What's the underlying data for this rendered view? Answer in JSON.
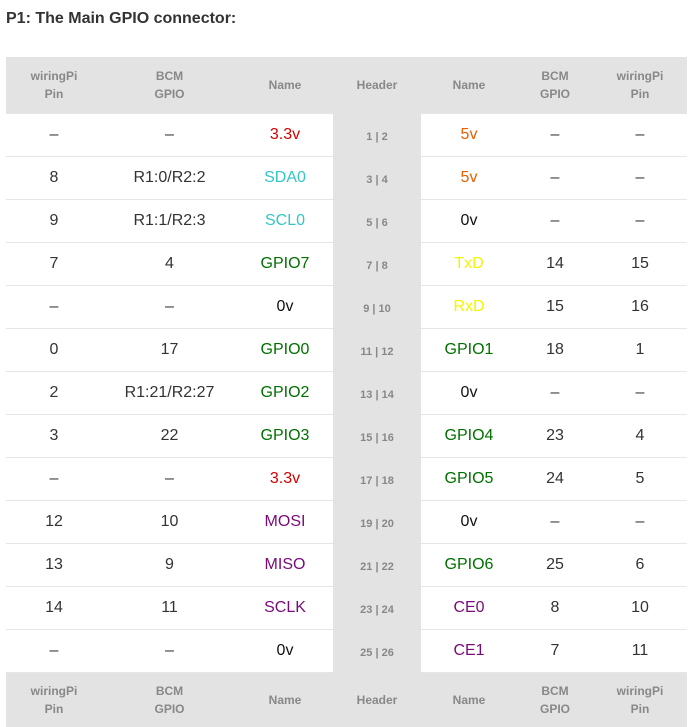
{
  "title": "P1: The Main GPIO connector:",
  "columns": [
    {
      "line1": "wiringPi",
      "line2": "Pin"
    },
    {
      "line1": "BCM",
      "line2": "GPIO"
    },
    {
      "line1": "Name",
      "line2": ""
    },
    {
      "line1": "Header",
      "line2": ""
    },
    {
      "line1": "Name",
      "line2": ""
    },
    {
      "line1": "BCM",
      "line2": "GPIO"
    },
    {
      "line1": "wiringPi",
      "line2": "Pin"
    }
  ],
  "colors": {
    "red": "#d40000",
    "orange": "#e86000",
    "cyan": "#33c6c6",
    "green": "#007000",
    "yellow": "#f5f500",
    "purple": "#7a0a7a",
    "black": "#111111"
  },
  "rows": [
    {
      "wpi_l": "–",
      "bcm_l": "–",
      "name_l": "3.3v",
      "name_l_color": "red",
      "header": "1 | 2",
      "name_r": "5v",
      "name_r_color": "orange",
      "bcm_r": "–",
      "wpi_r": "–"
    },
    {
      "wpi_l": "8",
      "bcm_l": "R1:0/R2:2",
      "name_l": "SDA0",
      "name_l_color": "cyan",
      "header": "3 | 4",
      "name_r": "5v",
      "name_r_color": "orange",
      "bcm_r": "–",
      "wpi_r": "–"
    },
    {
      "wpi_l": "9",
      "bcm_l": "R1:1/R2:3",
      "name_l": "SCL0",
      "name_l_color": "cyan",
      "header": "5 | 6",
      "name_r": "0v",
      "name_r_color": "black",
      "bcm_r": "–",
      "wpi_r": "–"
    },
    {
      "wpi_l": "7",
      "bcm_l": "4",
      "name_l": "GPIO7",
      "name_l_color": "green",
      "header": "7 | 8",
      "name_r": "TxD",
      "name_r_color": "yellow",
      "bcm_r": "14",
      "wpi_r": "15"
    },
    {
      "wpi_l": "–",
      "bcm_l": "–",
      "name_l": "0v",
      "name_l_color": "black",
      "header": "9 | 10",
      "name_r": "RxD",
      "name_r_color": "yellow",
      "bcm_r": "15",
      "wpi_r": "16"
    },
    {
      "wpi_l": "0",
      "bcm_l": "17",
      "name_l": "GPIO0",
      "name_l_color": "green",
      "header": "11 | 12",
      "name_r": "GPIO1",
      "name_r_color": "green",
      "bcm_r": "18",
      "wpi_r": "1"
    },
    {
      "wpi_l": "2",
      "bcm_l": "R1:21/R2:27",
      "name_l": "GPIO2",
      "name_l_color": "green",
      "header": "13 | 14",
      "name_r": "0v",
      "name_r_color": "black",
      "bcm_r": "–",
      "wpi_r": "–"
    },
    {
      "wpi_l": "3",
      "bcm_l": "22",
      "name_l": "GPIO3",
      "name_l_color": "green",
      "header": "15 | 16",
      "name_r": "GPIO4",
      "name_r_color": "green",
      "bcm_r": "23",
      "wpi_r": "4"
    },
    {
      "wpi_l": "–",
      "bcm_l": "–",
      "name_l": "3.3v",
      "name_l_color": "red",
      "header": "17 | 18",
      "name_r": "GPIO5",
      "name_r_color": "green",
      "bcm_r": "24",
      "wpi_r": "5"
    },
    {
      "wpi_l": "12",
      "bcm_l": "10",
      "name_l": "MOSI",
      "name_l_color": "purple",
      "header": "19 | 20",
      "name_r": "0v",
      "name_r_color": "black",
      "bcm_r": "–",
      "wpi_r": "–"
    },
    {
      "wpi_l": "13",
      "bcm_l": "9",
      "name_l": "MISO",
      "name_l_color": "purple",
      "header": "21 | 22",
      "name_r": "GPIO6",
      "name_r_color": "green",
      "bcm_r": "25",
      "wpi_r": "6"
    },
    {
      "wpi_l": "14",
      "bcm_l": "11",
      "name_l": "SCLK",
      "name_l_color": "purple",
      "header": "23 | 24",
      "name_r": "CE0",
      "name_r_color": "purple",
      "bcm_r": "8",
      "wpi_r": "10"
    },
    {
      "wpi_l": "–",
      "bcm_l": "–",
      "name_l": "0v",
      "name_l_color": "black",
      "header": "25 | 26",
      "name_r": "CE1",
      "name_r_color": "purple",
      "bcm_r": "7",
      "wpi_r": "11"
    }
  ]
}
